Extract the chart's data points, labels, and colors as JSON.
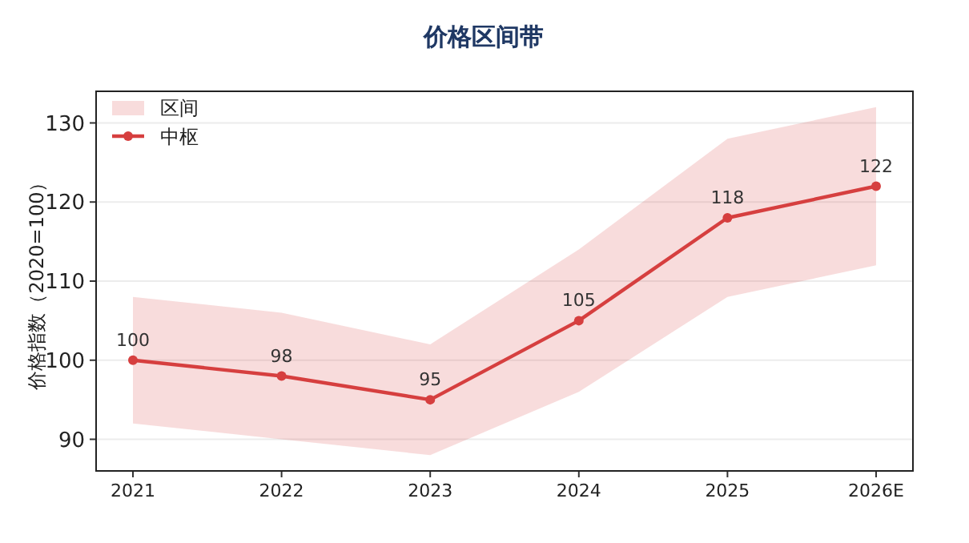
{
  "chart_data": {
    "type": "line",
    "title": "价格区间带",
    "ylabel": "价格指数（2020=100）",
    "categories": [
      "2021",
      "2022",
      "2023",
      "2024",
      "2025",
      "2026E"
    ],
    "series": [
      {
        "name": "中枢",
        "color": "#d63f3f",
        "marker": "circle",
        "values": [
          100,
          98,
          95,
          105,
          118,
          122
        ],
        "lower": [
          92,
          90,
          88,
          96,
          108,
          112
        ],
        "upper": [
          108,
          106,
          102,
          114,
          128,
          132
        ]
      }
    ],
    "annotations": [
      "区间"
    ],
    "ylim": [
      86,
      134
    ],
    "yticks": [
      90,
      100,
      110,
      120,
      130
    ],
    "grid": "y",
    "legend": "top left",
    "data_labels": true
  }
}
